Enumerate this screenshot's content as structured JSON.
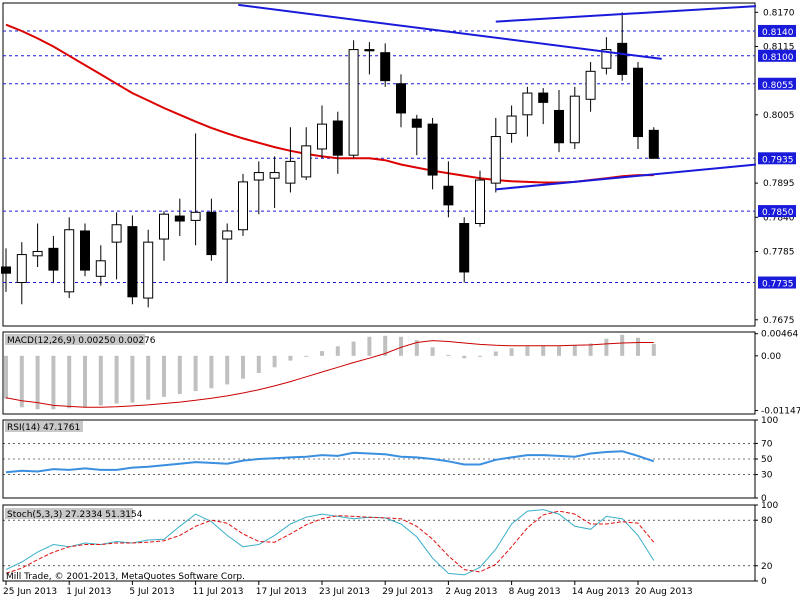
{
  "colors": {
    "background": "#ffffff",
    "ma_line": "#dd0000",
    "trendline": "#1a1adb",
    "level_line": "#1a1adb",
    "level_label_bg": "#1a1adb",
    "macd_hist": "#c0c0c0",
    "macd_signal": "#cc0000",
    "rsi_line": "#3a8fe0",
    "stoch_main": "#3ab0c8",
    "stoch_signal": "#e01010",
    "grid": "#000000"
  },
  "footer": {
    "copyright": "Mill Trade, © 2001-2013, MetaQuotes Software Corp."
  },
  "chart_data": [
    {
      "type": "candlestick",
      "panel": "price",
      "ylim": [
        0.7665,
        0.8185
      ],
      "price_ticks": [
        "0.8170",
        "0.8115",
        "0.8005",
        "0.7895",
        "0.7840",
        "0.7785",
        "0.7675"
      ],
      "level_ticks": [
        "0.8140",
        "0.8100",
        "0.8055",
        "0.7935",
        "0.7850",
        "0.7735"
      ],
      "x_labels": [
        "25 Jun 2013",
        "1 Jul 2013",
        "5 Jul 2013",
        "11 Jul 2013",
        "17 Jul 2013",
        "23 Jul 2013",
        "29 Jul 2013",
        "2 Aug 2013",
        "8 Aug 2013",
        "14 Aug 2013",
        "20 Aug 2013"
      ],
      "x_label_index": [
        0,
        4,
        8,
        12,
        16,
        20,
        24,
        28,
        32,
        36,
        40
      ],
      "candles": [
        {
          "o": 0.776,
          "h": 0.779,
          "l": 0.772,
          "c": 0.775
        },
        {
          "o": 0.7735,
          "h": 0.78,
          "l": 0.77,
          "c": 0.778
        },
        {
          "o": 0.7778,
          "h": 0.783,
          "l": 0.776,
          "c": 0.7785
        },
        {
          "o": 0.779,
          "h": 0.781,
          "l": 0.7735,
          "c": 0.7755
        },
        {
          "o": 0.772,
          "h": 0.784,
          "l": 0.771,
          "c": 0.782
        },
        {
          "o": 0.7818,
          "h": 0.783,
          "l": 0.7745,
          "c": 0.7755
        },
        {
          "o": 0.7745,
          "h": 0.7795,
          "l": 0.773,
          "c": 0.777
        },
        {
          "o": 0.78,
          "h": 0.7848,
          "l": 0.774,
          "c": 0.7828
        },
        {
          "o": 0.7825,
          "h": 0.7843,
          "l": 0.77,
          "c": 0.7712
        },
        {
          "o": 0.771,
          "h": 0.782,
          "l": 0.7695,
          "c": 0.78
        },
        {
          "o": 0.7805,
          "h": 0.785,
          "l": 0.777,
          "c": 0.7845
        },
        {
          "o": 0.7842,
          "h": 0.787,
          "l": 0.781,
          "c": 0.7834
        },
        {
          "o": 0.7835,
          "h": 0.7975,
          "l": 0.7795,
          "c": 0.7848
        },
        {
          "o": 0.7848,
          "h": 0.787,
          "l": 0.777,
          "c": 0.778
        },
        {
          "o": 0.7805,
          "h": 0.783,
          "l": 0.7735,
          "c": 0.7818
        },
        {
          "o": 0.782,
          "h": 0.791,
          "l": 0.781,
          "c": 0.7897
        },
        {
          "o": 0.79,
          "h": 0.793,
          "l": 0.7845,
          "c": 0.7912
        },
        {
          "o": 0.7903,
          "h": 0.7938,
          "l": 0.7855,
          "c": 0.7912
        },
        {
          "o": 0.7895,
          "h": 0.7985,
          "l": 0.788,
          "c": 0.793
        },
        {
          "o": 0.7905,
          "h": 0.7985,
          "l": 0.79,
          "c": 0.7955
        },
        {
          "o": 0.795,
          "h": 0.802,
          "l": 0.7935,
          "c": 0.799
        },
        {
          "o": 0.7995,
          "h": 0.801,
          "l": 0.791,
          "c": 0.794
        },
        {
          "o": 0.794,
          "h": 0.8125,
          "l": 0.7935,
          "c": 0.811
        },
        {
          "o": 0.811,
          "h": 0.8122,
          "l": 0.807,
          "c": 0.8108
        },
        {
          "o": 0.8105,
          "h": 0.812,
          "l": 0.805,
          "c": 0.806
        },
        {
          "o": 0.8055,
          "h": 0.807,
          "l": 0.7985,
          "c": 0.8008
        },
        {
          "o": 0.7998,
          "h": 0.8005,
          "l": 0.794,
          "c": 0.7985
        },
        {
          "o": 0.799,
          "h": 0.8,
          "l": 0.7885,
          "c": 0.7908
        },
        {
          "o": 0.789,
          "h": 0.793,
          "l": 0.784,
          "c": 0.786
        },
        {
          "o": 0.783,
          "h": 0.784,
          "l": 0.7735,
          "c": 0.7752
        },
        {
          "o": 0.783,
          "h": 0.7915,
          "l": 0.7825,
          "c": 0.79
        },
        {
          "o": 0.7895,
          "h": 0.8,
          "l": 0.788,
          "c": 0.797
        },
        {
          "o": 0.7975,
          "h": 0.802,
          "l": 0.796,
          "c": 0.8003
        },
        {
          "o": 0.8005,
          "h": 0.805,
          "l": 0.797,
          "c": 0.804
        },
        {
          "o": 0.804,
          "h": 0.8048,
          "l": 0.799,
          "c": 0.8025
        },
        {
          "o": 0.8012,
          "h": 0.8045,
          "l": 0.7945,
          "c": 0.796
        },
        {
          "o": 0.796,
          "h": 0.805,
          "l": 0.795,
          "c": 0.8035
        },
        {
          "o": 0.803,
          "h": 0.809,
          "l": 0.801,
          "c": 0.8075
        },
        {
          "o": 0.808,
          "h": 0.813,
          "l": 0.807,
          "c": 0.811
        },
        {
          "o": 0.812,
          "h": 0.817,
          "l": 0.806,
          "c": 0.807
        },
        {
          "o": 0.808,
          "h": 0.809,
          "l": 0.795,
          "c": 0.797
        },
        {
          "o": 0.798,
          "h": 0.7985,
          "l": 0.7935,
          "c": 0.7935
        }
      ],
      "ma": [
        0.815,
        0.814,
        0.8128,
        0.8115,
        0.81,
        0.8085,
        0.807,
        0.8055,
        0.804,
        0.8028,
        0.8016,
        0.8005,
        0.7994,
        0.7984,
        0.7975,
        0.7967,
        0.796,
        0.7953,
        0.7947,
        0.7942,
        0.7938,
        0.7935,
        0.7935,
        0.7935,
        0.7932,
        0.7925,
        0.792,
        0.7915,
        0.7911,
        0.7907,
        0.7903,
        0.79,
        0.7898,
        0.7897,
        0.7896,
        0.7896,
        0.7897,
        0.79,
        0.7903,
        0.7906,
        0.7908,
        0.7908
      ],
      "trendlines": [
        {
          "x1": 14.7,
          "y1": 0.8182,
          "x2": 41.5,
          "y2": 0.8095
        },
        {
          "x1": 31.0,
          "y1": 0.8155,
          "x2": 47.5,
          "y2": 0.818
        },
        {
          "x1": 31.0,
          "y1": 0.7885,
          "x2": 47.5,
          "y2": 0.7925
        }
      ],
      "levels": [
        0.814,
        0.81,
        0.8055,
        0.7935,
        0.785,
        0.7735
      ],
      "current_price": 0.7935
    },
    {
      "type": "bar",
      "panel": "macd",
      "title": "MACD(12,26,9) 0.00250 0.00276",
      "ylim": [
        -0.0122,
        0.005
      ],
      "y_ticks": [
        "0.00464",
        "0.00",
        "-0.01147"
      ],
      "y_tick_values": [
        0.00464,
        0.0,
        -0.01147
      ],
      "histogram": [
        -0.009,
        -0.0108,
        -0.0112,
        -0.0112,
        -0.011,
        -0.0108,
        -0.0104,
        -0.01,
        -0.0098,
        -0.0092,
        -0.0086,
        -0.008,
        -0.0074,
        -0.0068,
        -0.006,
        -0.0048,
        -0.0036,
        -0.0024,
        -0.001,
        0.0,
        0.001,
        0.002,
        0.003,
        0.004,
        0.0042,
        0.004,
        0.0033,
        0.0018,
        0.0002,
        -0.0005,
        0.0,
        0.0009,
        0.0016,
        0.002,
        0.0021,
        0.002,
        0.0022,
        0.0026,
        0.0036,
        0.0044,
        0.0038,
        0.0025
      ],
      "signal": [
        -0.0088,
        -0.0094,
        -0.0098,
        -0.0104,
        -0.0106,
        -0.0108,
        -0.0108,
        -0.0107,
        -0.0105,
        -0.0103,
        -0.01,
        -0.0097,
        -0.0093,
        -0.0089,
        -0.0084,
        -0.0078,
        -0.0071,
        -0.0063,
        -0.0054,
        -0.0044,
        -0.0034,
        -0.0024,
        -0.0014,
        -0.0005,
        0.0005,
        0.0018,
        0.0028,
        0.0032,
        0.003,
        0.0027,
        0.0024,
        0.0022,
        0.0021,
        0.0021,
        0.0021,
        0.0021,
        0.0022,
        0.0023,
        0.0025,
        0.0027,
        0.0028,
        0.0028
      ]
    },
    {
      "type": "line",
      "panel": "rsi",
      "title": "RSI(14) 47.1761",
      "ylim": [
        0,
        100
      ],
      "y_ticks": [
        "100",
        "70",
        "50",
        "30",
        "0"
      ],
      "y_tick_values": [
        100,
        70,
        50,
        30,
        0
      ],
      "levels": [
        70,
        50,
        30
      ],
      "values": [
        33,
        35,
        34,
        37,
        36,
        38,
        36,
        36,
        39,
        40,
        42,
        44,
        46,
        45,
        44,
        48,
        50,
        51,
        52,
        53,
        55,
        54,
        58,
        57,
        56,
        53,
        52,
        50,
        47,
        43,
        43,
        49,
        52,
        55,
        55,
        54,
        53,
        57,
        59,
        60,
        54,
        47
      ]
    },
    {
      "type": "line",
      "panel": "stochastic",
      "title": "Stoch(5,3,3) 27.2334 51.3154",
      "ylim": [
        0,
        100
      ],
      "y_ticks": [
        "100",
        "80",
        "20",
        "0"
      ],
      "y_tick_values": [
        100,
        80,
        20,
        0
      ],
      "levels": [
        80,
        20
      ],
      "main": [
        15,
        25,
        38,
        48,
        45,
        50,
        48,
        52,
        50,
        54,
        55,
        72,
        88,
        78,
        60,
        45,
        48,
        60,
        75,
        84,
        88,
        85,
        82,
        84,
        83,
        75,
        58,
        30,
        10,
        8,
        18,
        42,
        75,
        92,
        94,
        88,
        72,
        68,
        85,
        82,
        60,
        27
      ],
      "signal": [
        10,
        17,
        28,
        38,
        45,
        48,
        48,
        50,
        50,
        51,
        53,
        60,
        72,
        80,
        76,
        62,
        52,
        51,
        62,
        74,
        82,
        86,
        85,
        84,
        83,
        82,
        72,
        55,
        33,
        15,
        12,
        22,
        45,
        70,
        87,
        92,
        88,
        75,
        75,
        78,
        76,
        51
      ]
    }
  ]
}
